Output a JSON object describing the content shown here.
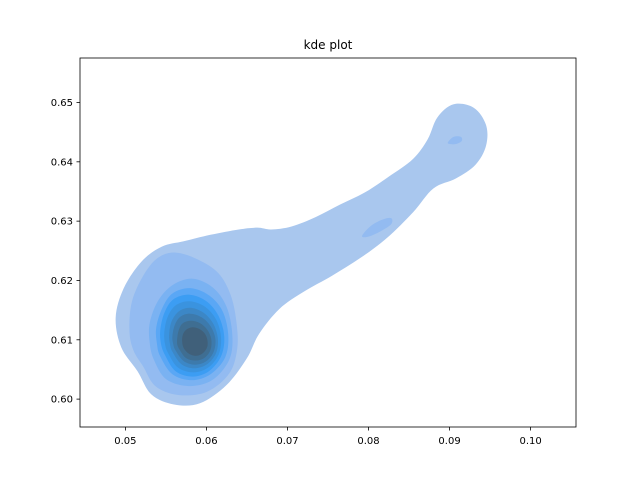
{
  "chart_data": {
    "type": "kde",
    "title": "kde plot",
    "xlabel": "",
    "ylabel": "",
    "xlim": [
      0.0444,
      0.1056
    ],
    "ylim": [
      0.5953,
      0.6575
    ],
    "x_ticks": [
      "0.05",
      "0.06",
      "0.07",
      "0.08",
      "0.09",
      "0.10"
    ],
    "y_ticks": [
      "0.60",
      "0.61",
      "0.62",
      "0.63",
      "0.64",
      "0.65"
    ],
    "x_tick_values": [
      0.05,
      0.06,
      0.07,
      0.08,
      0.09,
      0.1
    ],
    "y_tick_values": [
      0.6,
      0.61,
      0.62,
      0.63,
      0.64,
      0.65
    ],
    "grid": false,
    "legend": "none",
    "mode": "peak near (0.058, 0.6095), ridge extending to (0.091, 0.644)",
    "fill_colors": [
      "#a9c7ee",
      "#93bbf1",
      "#7ab2f2",
      "#5aa7f5",
      "#3c9df3",
      "#3a93df",
      "#3c87c6",
      "#3d7aac",
      "#3f6e92",
      "#40607a"
    ],
    "levels": [
      {
        "level": 1,
        "outline": [
          [
            0.0515,
            0.6047
          ],
          [
            0.0532,
            0.6008
          ],
          [
            0.056,
            0.5991
          ],
          [
            0.0592,
            0.5993
          ],
          [
            0.0625,
            0.6024
          ],
          [
            0.065,
            0.6069
          ],
          [
            0.0665,
            0.611
          ],
          [
            0.069,
            0.6152
          ],
          [
            0.072,
            0.6181
          ],
          [
            0.0755,
            0.6208
          ],
          [
            0.079,
            0.6238
          ],
          [
            0.0823,
            0.6272
          ],
          [
            0.0855,
            0.6315
          ],
          [
            0.088,
            0.6355
          ],
          [
            0.0908,
            0.6372
          ],
          [
            0.0932,
            0.6395
          ],
          [
            0.0945,
            0.6427
          ],
          [
            0.0945,
            0.6462
          ],
          [
            0.093,
            0.6491
          ],
          [
            0.0905,
            0.6497
          ],
          [
            0.0885,
            0.6475
          ],
          [
            0.0873,
            0.6438
          ],
          [
            0.0855,
            0.6405
          ],
          [
            0.0825,
            0.6375
          ],
          [
            0.0795,
            0.6348
          ],
          [
            0.0765,
            0.6328
          ],
          [
            0.0735,
            0.6307
          ],
          [
            0.0705,
            0.6291
          ],
          [
            0.068,
            0.6286
          ],
          [
            0.0663,
            0.6289
          ],
          [
            0.064,
            0.6286
          ],
          [
            0.0605,
            0.6277
          ],
          [
            0.0572,
            0.6266
          ],
          [
            0.0545,
            0.6257
          ],
          [
            0.052,
            0.6232
          ],
          [
            0.0498,
            0.6187
          ],
          [
            0.0488,
            0.6137
          ],
          [
            0.0495,
            0.6087
          ]
        ]
      },
      {
        "level": 2,
        "outline": [
          [
            0.0522,
            0.6055
          ],
          [
            0.0537,
            0.6022
          ],
          [
            0.0565,
            0.6007
          ],
          [
            0.06,
            0.6012
          ],
          [
            0.0628,
            0.6043
          ],
          [
            0.0638,
            0.6085
          ],
          [
            0.0637,
            0.613
          ],
          [
            0.063,
            0.6175
          ],
          [
            0.0615,
            0.6212
          ],
          [
            0.059,
            0.6235
          ],
          [
            0.0562,
            0.6247
          ],
          [
            0.054,
            0.6238
          ],
          [
            0.0522,
            0.6208
          ],
          [
            0.0508,
            0.6164
          ],
          [
            0.0505,
            0.6115
          ],
          [
            0.051,
            0.6082
          ]
        ]
      },
      {
        "level": 3,
        "outline": [
          [
            0.0535,
            0.6067
          ],
          [
            0.055,
            0.6034
          ],
          [
            0.0578,
            0.6022
          ],
          [
            0.0607,
            0.6032
          ],
          [
            0.0628,
            0.6066
          ],
          [
            0.0632,
            0.6107
          ],
          [
            0.0625,
            0.6155
          ],
          [
            0.0608,
            0.6188
          ],
          [
            0.0583,
            0.6203
          ],
          [
            0.0558,
            0.6192
          ],
          [
            0.054,
            0.6165
          ],
          [
            0.053,
            0.6128
          ],
          [
            0.053,
            0.6095
          ]
        ]
      },
      {
        "level": 4,
        "outline": [
          [
            0.0543,
            0.6072
          ],
          [
            0.0558,
            0.6042
          ],
          [
            0.0582,
            0.6032
          ],
          [
            0.0605,
            0.6042
          ],
          [
            0.0623,
            0.607
          ],
          [
            0.0627,
            0.6107
          ],
          [
            0.062,
            0.6148
          ],
          [
            0.0603,
            0.6175
          ],
          [
            0.058,
            0.6187
          ],
          [
            0.0558,
            0.6178
          ],
          [
            0.0545,
            0.6152
          ],
          [
            0.0538,
            0.612
          ],
          [
            0.0539,
            0.6093
          ]
        ]
      },
      {
        "level": 5,
        "outline": [
          [
            0.0549,
            0.6074
          ],
          [
            0.0562,
            0.6047
          ],
          [
            0.0583,
            0.6038
          ],
          [
            0.0603,
            0.6047
          ],
          [
            0.0618,
            0.6072
          ],
          [
            0.0622,
            0.6105
          ],
          [
            0.0615,
            0.614
          ],
          [
            0.06,
            0.6165
          ],
          [
            0.0579,
            0.6176
          ],
          [
            0.0559,
            0.6168
          ],
          [
            0.0548,
            0.6145
          ],
          [
            0.0543,
            0.6116
          ],
          [
            0.0544,
            0.6093
          ]
        ]
      },
      {
        "level": 6,
        "outline": [
          [
            0.0553,
            0.6077
          ],
          [
            0.0565,
            0.6053
          ],
          [
            0.0584,
            0.6045
          ],
          [
            0.0602,
            0.6053
          ],
          [
            0.0615,
            0.6075
          ],
          [
            0.0618,
            0.6104
          ],
          [
            0.0612,
            0.6134
          ],
          [
            0.0598,
            0.6156
          ],
          [
            0.0579,
            0.6165
          ],
          [
            0.0562,
            0.6158
          ],
          [
            0.0552,
            0.6138
          ],
          [
            0.0548,
            0.6112
          ],
          [
            0.0549,
            0.6092
          ]
        ]
      },
      {
        "level": 7,
        "outline": [
          [
            0.0558,
            0.608
          ],
          [
            0.0569,
            0.6059
          ],
          [
            0.0585,
            0.6052
          ],
          [
            0.0601,
            0.6059
          ],
          [
            0.0612,
            0.6078
          ],
          [
            0.0614,
            0.6103
          ],
          [
            0.0608,
            0.6128
          ],
          [
            0.0596,
            0.6146
          ],
          [
            0.058,
            0.6154
          ],
          [
            0.0566,
            0.6148
          ],
          [
            0.0557,
            0.6131
          ],
          [
            0.0554,
            0.6109
          ],
          [
            0.0555,
            0.6093
          ]
        ]
      },
      {
        "level": 8,
        "outline": [
          [
            0.0562,
            0.6082
          ],
          [
            0.0572,
            0.6064
          ],
          [
            0.0586,
            0.6058
          ],
          [
            0.06,
            0.6064
          ],
          [
            0.0609,
            0.608
          ],
          [
            0.0611,
            0.6102
          ],
          [
            0.0605,
            0.6123
          ],
          [
            0.0594,
            0.6138
          ],
          [
            0.058,
            0.6144
          ],
          [
            0.0568,
            0.6139
          ],
          [
            0.0561,
            0.6125
          ],
          [
            0.0558,
            0.6106
          ],
          [
            0.0559,
            0.6093
          ]
        ]
      },
      {
        "level": 9,
        "outline": [
          [
            0.0567,
            0.6083
          ],
          [
            0.0575,
            0.6069
          ],
          [
            0.0587,
            0.6065
          ],
          [
            0.0598,
            0.607
          ],
          [
            0.0605,
            0.6083
          ],
          [
            0.0606,
            0.6101
          ],
          [
            0.0601,
            0.6117
          ],
          [
            0.0592,
            0.6128
          ],
          [
            0.0581,
            0.6132
          ],
          [
            0.0571,
            0.6128
          ],
          [
            0.0566,
            0.6117
          ],
          [
            0.0564,
            0.6103
          ],
          [
            0.0564,
            0.6092
          ]
        ]
      },
      {
        "level": 10,
        "outline": [
          [
            0.0572,
            0.6086
          ],
          [
            0.0579,
            0.6076
          ],
          [
            0.0588,
            0.6073
          ],
          [
            0.0596,
            0.6078
          ],
          [
            0.0601,
            0.6088
          ],
          [
            0.0601,
            0.6101
          ],
          [
            0.0597,
            0.6112
          ],
          [
            0.059,
            0.6119
          ],
          [
            0.0582,
            0.6121
          ],
          [
            0.0575,
            0.6117
          ],
          [
            0.0571,
            0.6109
          ],
          [
            0.057,
            0.6098
          ]
        ]
      },
      {
        "level": 2,
        "outline": [
          [
            0.0792,
            0.6275
          ],
          [
            0.0803,
            0.6292
          ],
          [
            0.0818,
            0.6303
          ],
          [
            0.0828,
            0.6305
          ],
          [
            0.0828,
            0.6295
          ],
          [
            0.0815,
            0.6283
          ],
          [
            0.08,
            0.6274
          ]
        ]
      },
      {
        "level": 2,
        "outline": [
          [
            0.0898,
            0.6433
          ],
          [
            0.0905,
            0.6442
          ],
          [
            0.0914,
            0.6442
          ],
          [
            0.0915,
            0.6435
          ],
          [
            0.0908,
            0.643
          ],
          [
            0.09,
            0.643
          ]
        ]
      }
    ]
  }
}
